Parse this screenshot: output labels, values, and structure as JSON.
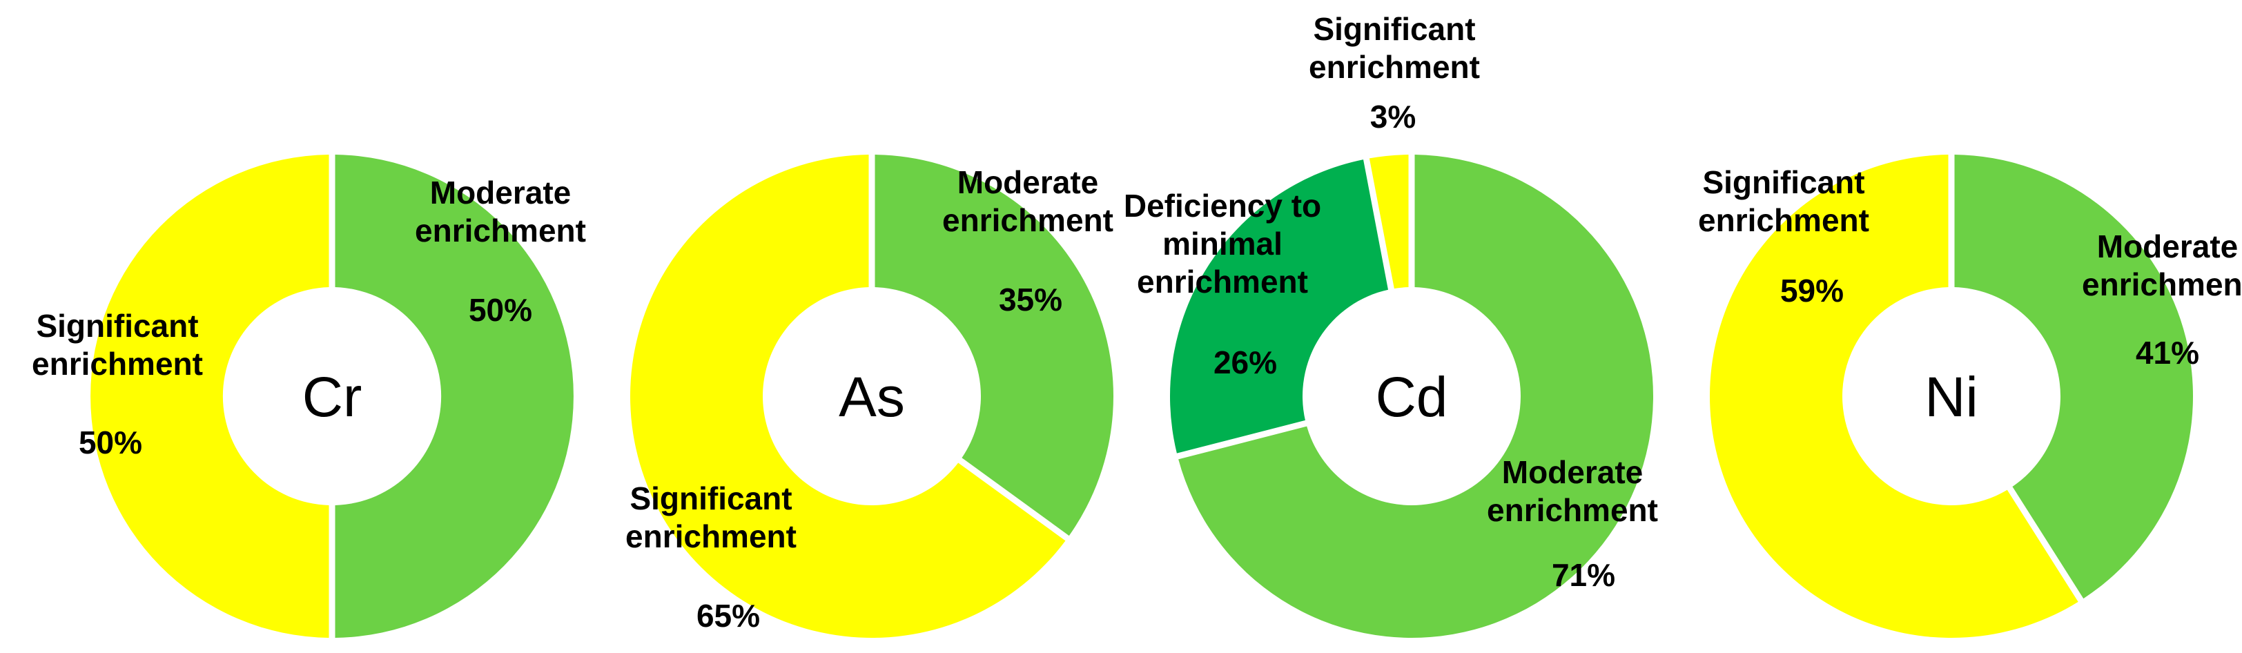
{
  "chart_data": [
    {
      "type": "donut",
      "center_label": "Cr",
      "slices": [
        {
          "label_lines": [
            "Moderate",
            "enrichment"
          ],
          "percent_label": "50%",
          "value": 50,
          "color": "#6cd145"
        },
        {
          "label_lines": [
            "Significant",
            "enrichment"
          ],
          "percent_label": "50%",
          "value": 50,
          "color": "#ffff00"
        }
      ]
    },
    {
      "type": "donut",
      "center_label": "As",
      "slices": [
        {
          "label_lines": [
            "Moderate",
            "enrichment"
          ],
          "percent_label": "35%",
          "value": 35,
          "color": "#6cd145"
        },
        {
          "label_lines": [
            "Significant",
            "enrichment"
          ],
          "percent_label": "65%",
          "value": 65,
          "color": "#ffff00"
        }
      ]
    },
    {
      "type": "donut",
      "center_label": "Cd",
      "slices": [
        {
          "label_lines": [
            "Moderate",
            "enrichment"
          ],
          "percent_label": "71%",
          "value": 71,
          "color": "#6cd145"
        },
        {
          "label_lines": [
            "Deficiency to",
            "minimal",
            "enrichment"
          ],
          "percent_label": "26%",
          "value": 26,
          "color": "#00b04f"
        },
        {
          "label_lines": [
            "Significant",
            "enrichment"
          ],
          "percent_label": "3%",
          "value": 3,
          "color": "#ffff00"
        }
      ]
    },
    {
      "type": "donut",
      "center_label": "Ni",
      "slices": [
        {
          "label_lines": [
            "Moderate",
            "enrichment"
          ],
          "percent_label": "41%",
          "value": 41,
          "color": "#6cd145"
        },
        {
          "label_lines": [
            "Significant",
            "enrichment"
          ],
          "percent_label": "59%",
          "value": 59,
          "color": "#ffff00"
        }
      ]
    }
  ]
}
